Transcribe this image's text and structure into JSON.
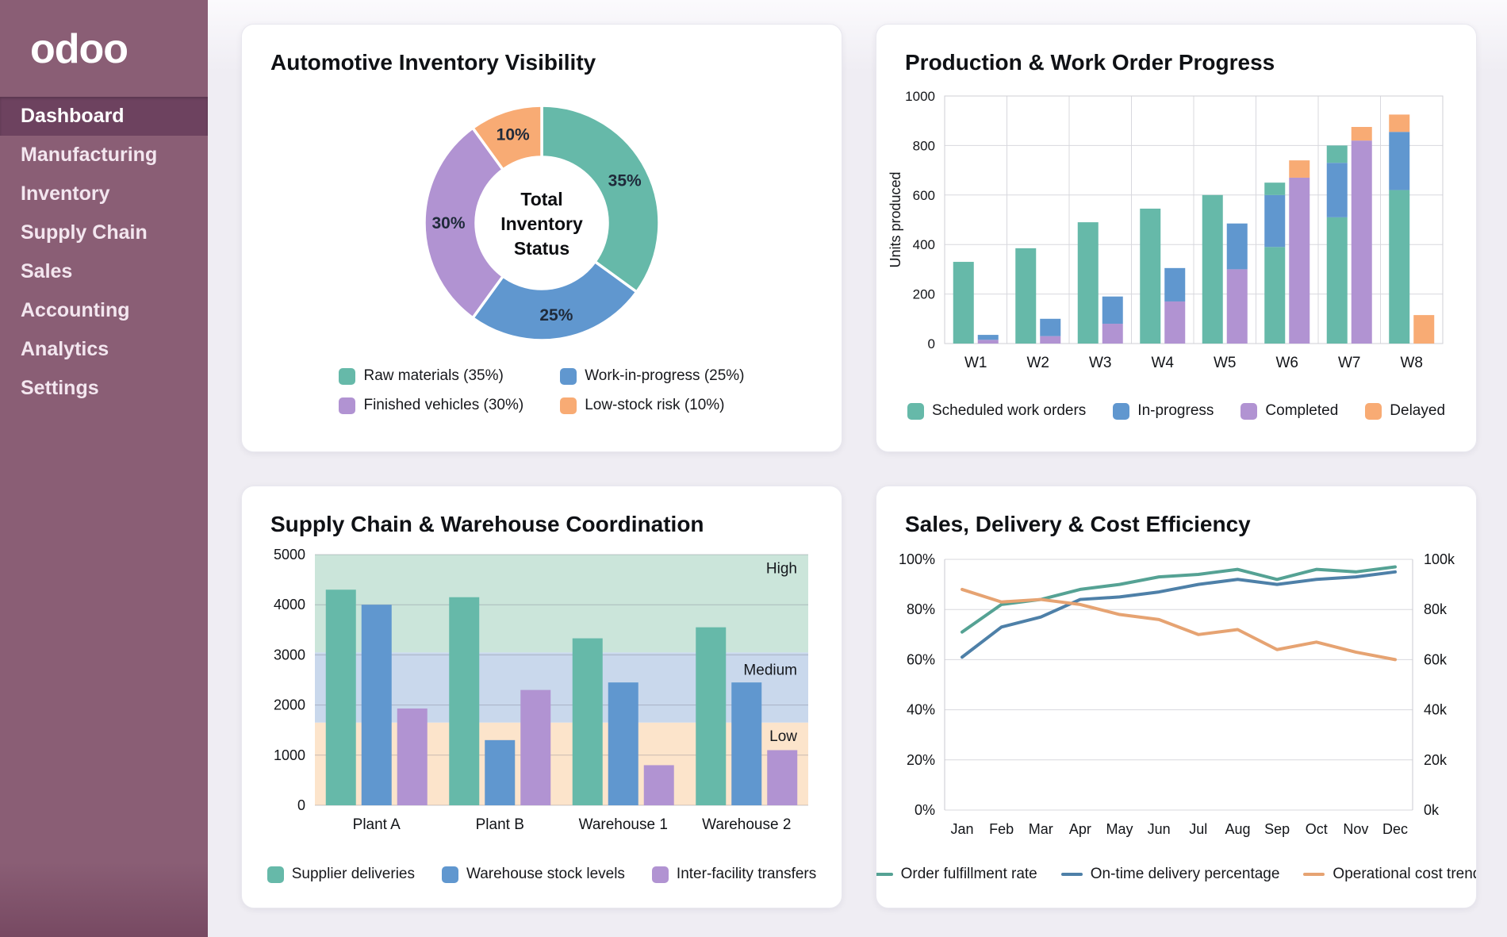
{
  "sidebar": {
    "logo_text": "odoo",
    "items": [
      {
        "label": "Dashboard",
        "active": true
      },
      {
        "label": "Manufacturing",
        "active": false
      },
      {
        "label": "Inventory",
        "active": false
      },
      {
        "label": "Supply Chain",
        "active": false
      },
      {
        "label": "Sales",
        "active": false
      },
      {
        "label": "Accounting",
        "active": false
      },
      {
        "label": "Analytics",
        "active": false
      },
      {
        "label": "Settings",
        "active": false
      }
    ]
  },
  "colors": {
    "teal": "#66b9a9",
    "blue": "#6097cf",
    "purple": "#b193d2",
    "orange": "#f8ab74",
    "lineTeal": "#55a294",
    "lineBlue": "#4e80a8",
    "lineOrange": "#e6a372",
    "bandHigh": "#cbe5da",
    "bandMedium": "#c9d8ec",
    "bandLow": "#fce4cb",
    "grid": "#d8d8de",
    "axisText": "#121418",
    "labelText": "#1f2a3a"
  },
  "chart_data": [
    {
      "id": "inventory_donut",
      "type": "pie",
      "title": "Automotive Inventory Visibility",
      "center_label_lines": [
        "Total",
        "Inventory",
        "Status"
      ],
      "segments": [
        {
          "label": "Raw materials",
          "value_pct": 35,
          "color_key": "teal"
        },
        {
          "label": "Work-in-progress",
          "value_pct": 25,
          "color_key": "blue"
        },
        {
          "label": "Finished vehicles",
          "value_pct": 30,
          "color_key": "purple"
        },
        {
          "label": "Low-stock risk",
          "value_pct": 10,
          "color_key": "orange"
        }
      ],
      "legend": [
        {
          "label": "Raw materials (35%)",
          "color_key": "teal"
        },
        {
          "label": "Work-in-progress (25%)",
          "color_key": "blue"
        },
        {
          "label": "Finished vehicles (30%)",
          "color_key": "purple"
        },
        {
          "label": "Low-stock risk (10%)",
          "color_key": "orange"
        }
      ]
    },
    {
      "id": "production_bars",
      "type": "bar",
      "title": "Production & Work Order Progress",
      "ylabel": "Units produced",
      "ylim": [
        0,
        1000
      ],
      "yticks": [
        0,
        200,
        400,
        600,
        800,
        1000
      ],
      "categories": [
        "W1",
        "W2",
        "W3",
        "W4",
        "W5",
        "W6",
        "W7",
        "W8"
      ],
      "grid": "both",
      "groups": [
        {
          "label": "W1",
          "bars": [
            [
              [
                "teal",
                0,
                330
              ]
            ],
            [
              [
                "purple",
                0,
                15
              ],
              [
                "blue",
                15,
                35
              ]
            ]
          ]
        },
        {
          "label": "W2",
          "bars": [
            [
              [
                "teal",
                0,
                385
              ]
            ],
            [
              [
                "purple",
                0,
                30
              ],
              [
                "blue",
                30,
                100
              ]
            ]
          ]
        },
        {
          "label": "W3",
          "bars": [
            [
              [
                "teal",
                0,
                490
              ]
            ],
            [
              [
                "purple",
                0,
                80
              ],
              [
                "blue",
                80,
                190
              ]
            ]
          ]
        },
        {
          "label": "W4",
          "bars": [
            [
              [
                "teal",
                0,
                545
              ]
            ],
            [
              [
                "purple",
                0,
                170
              ],
              [
                "blue",
                170,
                305
              ]
            ]
          ]
        },
        {
          "label": "W5",
          "bars": [
            [
              [
                "teal",
                0,
                600
              ]
            ],
            [
              [
                "purple",
                0,
                300
              ],
              [
                "blue",
                300,
                485
              ]
            ]
          ]
        },
        {
          "label": "W6",
          "bars": [
            [
              [
                "teal",
                0,
                390
              ],
              [
                "blue",
                390,
                600
              ],
              [
                "teal",
                600,
                650
              ]
            ],
            [
              [
                "purple",
                0,
                670
              ],
              [
                "orange",
                670,
                740
              ]
            ]
          ]
        },
        {
          "label": "W7",
          "bars": [
            [
              [
                "teal",
                0,
                510
              ],
              [
                "blue",
                510,
                730
              ],
              [
                "teal",
                730,
                800
              ]
            ],
            [
              [
                "purple",
                0,
                820
              ],
              [
                "orange",
                820,
                875
              ]
            ]
          ]
        },
        {
          "label": "W8",
          "bars": [
            [
              [
                "teal",
                0,
                620
              ],
              [
                "blue",
                620,
                855
              ],
              [
                "orange",
                855,
                925
              ]
            ],
            [
              [
                "orange",
                0,
                115
              ]
            ]
          ]
        }
      ],
      "legend": [
        {
          "label": "Scheduled work orders",
          "color_key": "teal"
        },
        {
          "label": "In-progress",
          "color_key": "blue"
        },
        {
          "label": "Completed",
          "color_key": "purple"
        },
        {
          "label": "Delayed",
          "color_key": "orange"
        }
      ]
    },
    {
      "id": "supply_bars",
      "type": "grouped_bar",
      "title": "Supply Chain & Warehouse Coordination",
      "ylim": [
        0,
        5000
      ],
      "yticks": [
        0,
        1000,
        2000,
        3000,
        4000,
        5000
      ],
      "categories": [
        "Plant A",
        "Plant B",
        "Warehouse 1",
        "Warehouse 2"
      ],
      "series": [
        {
          "name": "Supplier deliveries",
          "color_key": "teal",
          "values": [
            4300,
            4150,
            3330,
            3550
          ]
        },
        {
          "name": "Warehouse stock levels",
          "color_key": "blue",
          "values": [
            4000,
            1300,
            2450,
            2450
          ]
        },
        {
          "name": "Inter-facility transfers",
          "color_key": "purple",
          "values": [
            1930,
            2300,
            800,
            1100
          ]
        }
      ],
      "bands": [
        {
          "label": "Low",
          "from": 0,
          "to": 1650,
          "color_key": "bandLow",
          "label_y": 1380
        },
        {
          "label": "Medium",
          "from": 1650,
          "to": 3050,
          "color_key": "bandMedium",
          "label_y": 2700
        },
        {
          "label": "High",
          "from": 3050,
          "to": 5000,
          "color_key": "bandHigh",
          "label_y": 4720
        }
      ],
      "legend": [
        {
          "label": "Supplier deliveries",
          "color_key": "teal"
        },
        {
          "label": "Warehouse stock levels",
          "color_key": "blue"
        },
        {
          "label": "Inter-facility transfers",
          "color_key": "purple"
        }
      ]
    },
    {
      "id": "sales_lines",
      "type": "line",
      "title": "Sales, Delivery & Cost Efficiency",
      "x": [
        "Jan",
        "Feb",
        "Mar",
        "Apr",
        "May",
        "Jun",
        "Jul",
        "Aug",
        "Sep",
        "Oct",
        "Nov",
        "Dec"
      ],
      "ylim": [
        0,
        100
      ],
      "left_ticks": [
        "0%",
        "20%",
        "40%",
        "60%",
        "80%",
        "100%"
      ],
      "right_ticks": [
        "0k",
        "20k",
        "40k",
        "60k",
        "80k",
        "100k"
      ],
      "series": [
        {
          "name": "Order fulfillment rate",
          "color_key": "lineTeal",
          "values": [
            71,
            82,
            84,
            88,
            90,
            93,
            94,
            96,
            92,
            96,
            95,
            97
          ]
        },
        {
          "name": "On-time delivery percentage",
          "color_key": "lineBlue",
          "values": [
            61,
            73,
            77,
            84,
            85,
            87,
            90,
            92,
            90,
            92,
            93,
            95
          ]
        },
        {
          "name": "Operational cost trend",
          "color_key": "lineOrange",
          "values": [
            88,
            83,
            84,
            82,
            78,
            76,
            70,
            72,
            64,
            67,
            63,
            60
          ]
        }
      ],
      "legend": [
        {
          "label": "Order fulfillment rate",
          "color_key": "lineTeal"
        },
        {
          "label": "On-time delivery percentage",
          "color_key": "lineBlue"
        },
        {
          "label": "Operational cost trend",
          "color_key": "lineOrange"
        }
      ]
    }
  ]
}
